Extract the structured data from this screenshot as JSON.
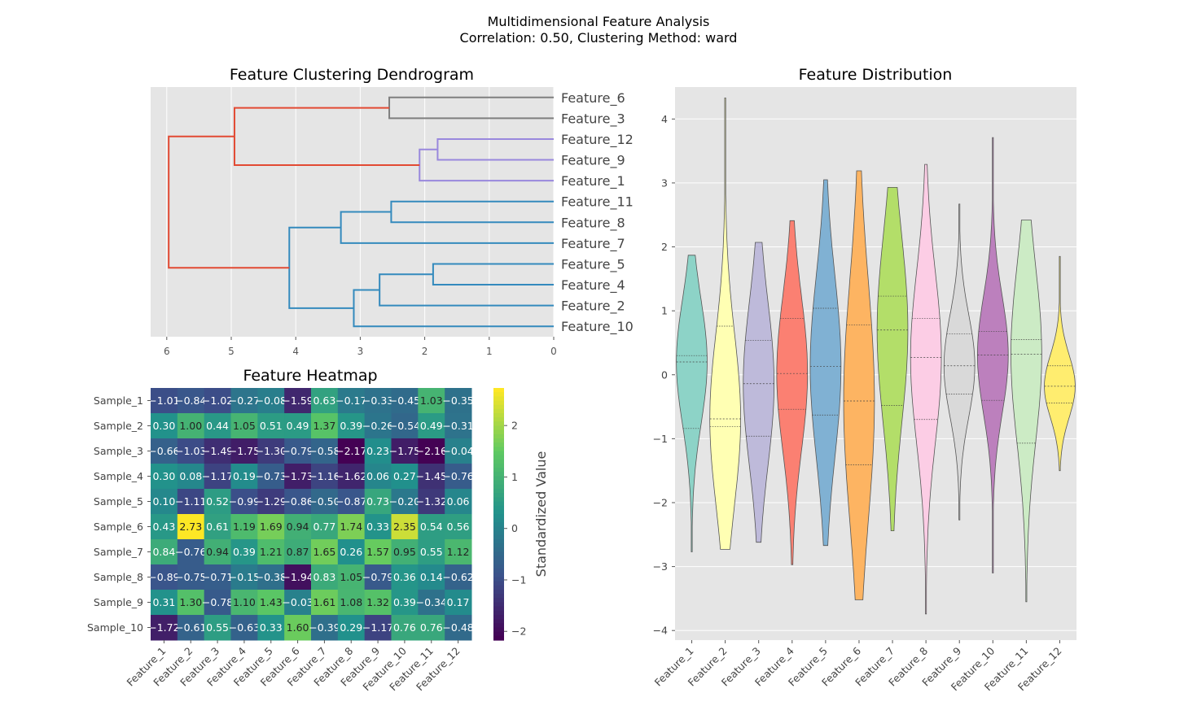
{
  "suptitle": {
    "line1": "Multidimensional Feature Analysis",
    "line2": "Correlation: 0.50, Clustering Method: ward"
  },
  "chart_data": [
    {
      "type": "dendrogram",
      "title": "Feature Clustering Dendrogram",
      "orientation": "left",
      "leaf_order_top_to_bottom": [
        "Feature_6",
        "Feature_3",
        "Feature_12",
        "Feature_9",
        "Feature_1",
        "Feature_11",
        "Feature_8",
        "Feature_7",
        "Feature_5",
        "Feature_4",
        "Feature_2",
        "Feature_10"
      ],
      "xlim": [
        6.25,
        0
      ],
      "xticks": [
        6,
        5,
        4,
        3,
        2,
        1,
        0
      ],
      "links": [
        {
          "a": "Feature_6",
          "b": "Feature_3",
          "height": 2.55,
          "color": "#7f7f7f",
          "id": "L1"
        },
        {
          "a": "Feature_12",
          "b": "Feature_9",
          "height": 1.8,
          "color": "#9988dd",
          "id": "L2"
        },
        {
          "a": "L2",
          "b": "Feature_1",
          "height": 2.08,
          "color": "#9988dd",
          "id": "L3"
        },
        {
          "a": "L1",
          "b": "L3",
          "height": 4.95,
          "color": "#e24a33",
          "id": "L4"
        },
        {
          "a": "Feature_11",
          "b": "Feature_8",
          "height": 2.52,
          "color": "#348abd",
          "id": "L5"
        },
        {
          "a": "L5",
          "b": "Feature_7",
          "height": 3.3,
          "color": "#348abd",
          "id": "L6"
        },
        {
          "a": "Feature_5",
          "b": "Feature_4",
          "height": 1.87,
          "color": "#348abd",
          "id": "L7"
        },
        {
          "a": "L7",
          "b": "Feature_2",
          "height": 2.7,
          "color": "#348abd",
          "id": "L8"
        },
        {
          "a": "L8",
          "b": "Feature_10",
          "height": 3.1,
          "color": "#348abd",
          "id": "L9"
        },
        {
          "a": "L6",
          "b": "L9",
          "height": 4.1,
          "color": "#348abd",
          "id": "L10"
        },
        {
          "a": "L4",
          "b": "L10",
          "height": 5.97,
          "color": "#e24a33",
          "id": "L11"
        }
      ]
    },
    {
      "type": "heatmap",
      "title": "Feature Heatmap",
      "colorbar_label": "Standardized Value",
      "colorbar_ticks": [
        2,
        1,
        0,
        -1,
        -2
      ],
      "vmin": -2.17,
      "vmax": 2.73,
      "rows": [
        "Sample_1",
        "Sample_2",
        "Sample_3",
        "Sample_4",
        "Sample_5",
        "Sample_6",
        "Sample_7",
        "Sample_8",
        "Sample_9",
        "Sample_10"
      ],
      "cols": [
        "Feature_1",
        "Feature_2",
        "Feature_3",
        "Feature_4",
        "Feature_5",
        "Feature_6",
        "Feature_7",
        "Feature_8",
        "Feature_9",
        "Feature_10",
        "Feature_11",
        "Feature_12"
      ],
      "values": [
        [
          -1.01,
          -0.84,
          -1.02,
          -0.27,
          -0.08,
          -1.59,
          0.63,
          -0.17,
          -0.33,
          -0.45,
          1.03,
          -0.35
        ],
        [
          0.3,
          1.0,
          0.44,
          1.05,
          0.51,
          0.49,
          1.37,
          0.39,
          -0.26,
          -0.54,
          0.49,
          -0.31
        ],
        [
          -0.66,
          -1.03,
          -1.49,
          -1.75,
          -1.3,
          -0.79,
          -0.58,
          -2.17,
          0.23,
          -1.75,
          -2.16,
          -0.04
        ],
        [
          0.3,
          0.08,
          -1.17,
          0.19,
          -0.73,
          -1.73,
          -1.16,
          -1.62,
          0.06,
          0.27,
          -1.45,
          -0.76
        ],
        [
          0.1,
          -1.11,
          0.52,
          -0.99,
          -1.29,
          -0.86,
          -0.5,
          -0.87,
          0.73,
          -0.2,
          -1.32,
          0.06
        ],
        [
          0.43,
          2.73,
          0.61,
          1.19,
          1.69,
          0.94,
          0.77,
          1.74,
          0.33,
          2.35,
          0.54,
          0.56
        ],
        [
          0.84,
          -0.76,
          0.94,
          0.39,
          1.21,
          0.87,
          1.65,
          0.26,
          1.57,
          0.95,
          0.55,
          1.12
        ],
        [
          -0.89,
          -0.75,
          -0.71,
          -0.15,
          -0.38,
          -1.94,
          0.83,
          1.05,
          -0.79,
          0.36,
          0.14,
          -0.62
        ],
        [
          0.31,
          1.3,
          -0.78,
          1.1,
          1.43,
          -0.03,
          1.61,
          1.08,
          1.32,
          0.39,
          -0.34,
          0.17
        ],
        [
          -1.72,
          -0.61,
          0.55,
          -0.63,
          0.33,
          1.6,
          -0.39,
          0.29,
          -1.17,
          0.76,
          0.76,
          -0.48
        ]
      ]
    },
    {
      "type": "violin",
      "title": "Feature Distribution",
      "ylim": [
        -4.15,
        4.5
      ],
      "yticks": [
        4,
        3,
        2,
        1,
        0,
        -1,
        -2,
        -3,
        -4
      ],
      "categories": [
        "Feature_1",
        "Feature_2",
        "Feature_3",
        "Feature_4",
        "Feature_5",
        "Feature_6",
        "Feature_7",
        "Feature_8",
        "Feature_9",
        "Feature_10",
        "Feature_11",
        "Feature_12"
      ],
      "colors": [
        "#8dd3c7",
        "#ffffb3",
        "#bebada",
        "#fb8072",
        "#80b1d3",
        "#fdb462",
        "#b3de69",
        "#fccde5",
        "#d9d9d9",
        "#bc80bd",
        "#ccebc5",
        "#ffed6f"
      ],
      "distributions": [
        {
          "min": -2.77,
          "max": 1.87,
          "q1": -0.84,
          "median": 0.2,
          "q3": 0.3
        },
        {
          "min": -2.73,
          "max": 4.33,
          "q1": -0.81,
          "median": -0.69,
          "q3": 0.76
        },
        {
          "min": -2.62,
          "max": 2.07,
          "q1": -0.96,
          "median": -0.14,
          "q3": 0.54
        },
        {
          "min": -2.97,
          "max": 2.41,
          "q1": -0.54,
          "median": 0.02,
          "q3": 0.88
        },
        {
          "min": -2.67,
          "max": 3.05,
          "q1": -0.63,
          "median": 0.13,
          "q3": 1.04
        },
        {
          "min": -3.52,
          "max": 3.19,
          "q1": -1.41,
          "median": -0.41,
          "q3": 0.78
        },
        {
          "min": -2.44,
          "max": 2.93,
          "q1": -0.48,
          "median": 0.7,
          "q3": 1.23
        },
        {
          "min": -3.74,
          "max": 3.29,
          "q1": -0.7,
          "median": 0.27,
          "q3": 0.88
        },
        {
          "min": -2.27,
          "max": 2.67,
          "q1": -0.3,
          "median": 0.14,
          "q3": 0.64
        },
        {
          "min": -3.1,
          "max": 3.71,
          "q1": -0.4,
          "median": 0.31,
          "q3": 0.68
        },
        {
          "min": -3.55,
          "max": 2.42,
          "q1": -1.07,
          "median": 0.32,
          "q3": 0.55
        },
        {
          "min": -1.5,
          "max": 1.85,
          "q1": -0.44,
          "median": -0.18,
          "q3": 0.14
        }
      ]
    }
  ]
}
